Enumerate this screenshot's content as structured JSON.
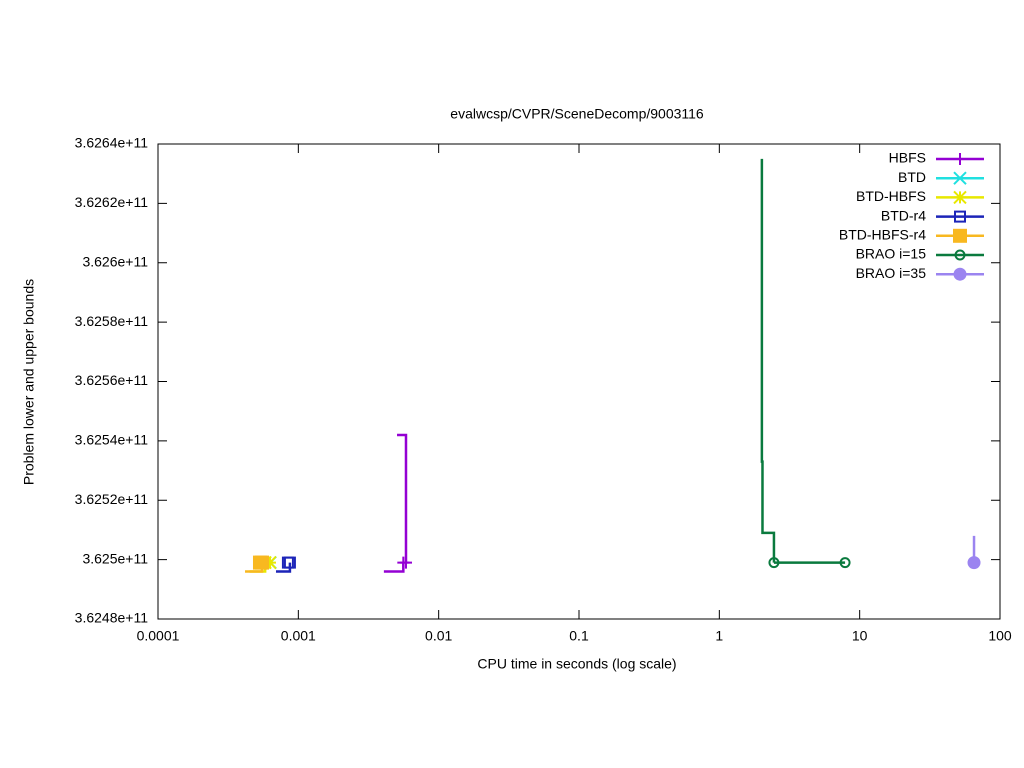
{
  "chart_data": {
    "type": "line",
    "title": "evalwcsp/CVPR/SceneDecomp/9003116",
    "xlabel": "CPU time in seconds (log scale)",
    "ylabel": "Problem lower and upper bounds",
    "xlog": true,
    "grid": false,
    "legend": "top-right",
    "xlim": [
      0.0001,
      100
    ],
    "xticks": [
      0.0001,
      0.001,
      0.01,
      0.1,
      1,
      10,
      100
    ],
    "ylim": [
      362480000000,
      362640000000
    ],
    "yticks": [
      {
        "value": 362480000000,
        "label": "3.6248e+11"
      },
      {
        "value": 362500000000,
        "label": "3.625e+11"
      },
      {
        "value": 362520000000,
        "label": "3.6252e+11"
      },
      {
        "value": 362540000000,
        "label": "3.6254e+11"
      },
      {
        "value": 362560000000,
        "label": "3.6256e+11"
      },
      {
        "value": 362580000000,
        "label": "3.6258e+11"
      },
      {
        "value": 362600000000,
        "label": "3.626e+11"
      },
      {
        "value": 362620000000,
        "label": "3.6262e+11"
      },
      {
        "value": 362640000000,
        "label": "3.6264e+11"
      }
    ],
    "series": [
      {
        "name": "HBFS",
        "color": "#9400d3",
        "marker": "plus",
        "x": [
          0.00407,
          0.0056,
          0.0056,
          null,
          0.00505,
          0.00585,
          0.00585
        ],
        "values": [
          362496000000,
          362496000000,
          362499000000,
          null,
          362542000000,
          362542000000,
          362499000000
        ]
      },
      {
        "name": "BTD",
        "color": "#20e0e0",
        "marker": "cross",
        "x": [
          0.00063
        ],
        "values": [
          362499000000
        ]
      },
      {
        "name": "BTD-HBFS",
        "color": "#e8e800",
        "marker": "star",
        "x": [
          0.00045,
          0.00058,
          0.00058,
          null,
          0.000628
        ],
        "values": [
          362496000000,
          362496000000,
          362499000000,
          null,
          362499000000
        ]
      },
      {
        "name": "BTD-r4",
        "color": "#1c24b8",
        "marker": "square",
        "x": [
          0.000693,
          0.000871,
          0.000871,
          null,
          0.000843
        ],
        "values": [
          362496000000,
          362496000000,
          362499000000,
          null,
          362499000000
        ]
      },
      {
        "name": "BTD-HBFS-r4",
        "color": "#f8b820",
        "marker": "square-filled",
        "x": [
          0.000417,
          0.000551,
          0.000551,
          null,
          0.000533
        ],
        "values": [
          362496000000,
          362496000000,
          362499000000,
          null,
          362499000000
        ]
      },
      {
        "name": "BRAO i=15",
        "color": "#0a7a3e",
        "marker": "circle",
        "x": [
          2.01,
          2.01,
          2.03,
          2.03,
          2.45,
          2.45,
          null,
          2.45,
          7.87
        ],
        "values": [
          362635000000,
          362533000000,
          362533000000,
          362509000000,
          362509000000,
          362499000000,
          null,
          362499000000,
          362499000000
        ]
      },
      {
        "name": "BRAO i=35",
        "color": "#9b84f0",
        "marker": "circle-filled",
        "x": [
          65.3,
          65.3
        ],
        "values": [
          362508000000,
          362499000000
        ]
      }
    ]
  }
}
